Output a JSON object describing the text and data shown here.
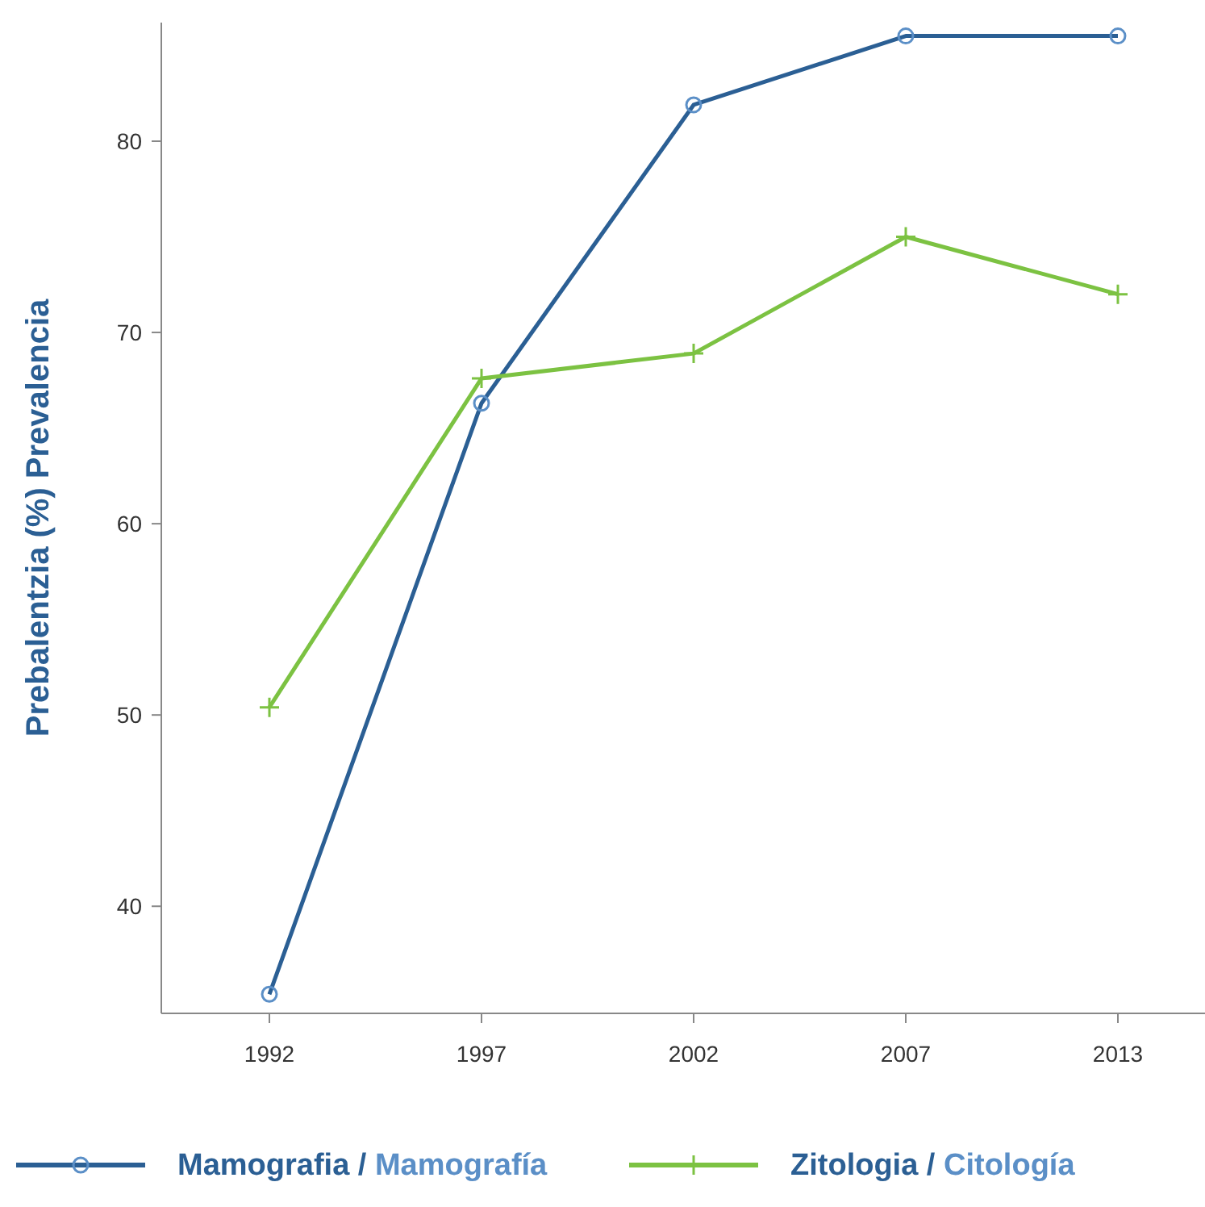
{
  "chart_data": {
    "type": "line",
    "ylabel": "Prebalentzia (%) Prevalencia",
    "categories": [
      "1992",
      "1997",
      "2002",
      "2007",
      "2013"
    ],
    "series": [
      {
        "name": "Mamografia / Mamografía",
        "color": "#2b5f94",
        "marker": "circle",
        "values": [
          35.4,
          66.3,
          81.9,
          85.5,
          85.5
        ]
      },
      {
        "name": "Zitologia / Citología",
        "color": "#7cc242",
        "marker": "cross",
        "values": [
          50.4,
          67.6,
          68.9,
          75.0,
          72.0
        ]
      }
    ],
    "ylim": [
      34.4,
      86.2
    ],
    "yticks": [
      40,
      50,
      60,
      70,
      80
    ],
    "grid": false,
    "legend": "bottom",
    "line_style": "solid"
  }
}
